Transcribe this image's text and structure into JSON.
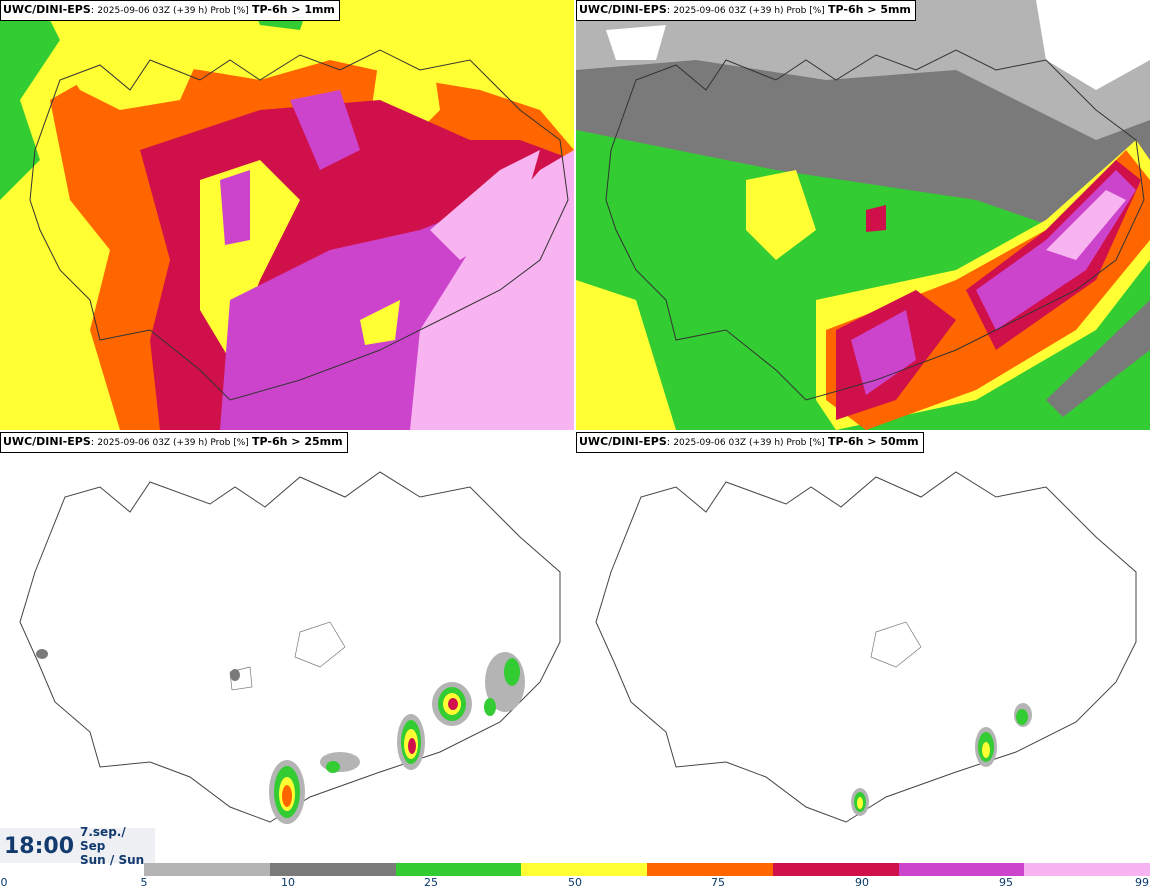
{
  "panels": [
    {
      "id": "p1",
      "source": "UWC/DINI-EPS",
      "run": "2025-09-06 03Z (+39 h) Prob [%]",
      "variable": "TP-6h > 1mm"
    },
    {
      "id": "p2",
      "source": "UWC/DINI-EPS",
      "run": "2025-09-06 03Z (+39 h) Prob [%]",
      "variable": "TP-6h > 5mm"
    },
    {
      "id": "p3",
      "source": "UWC/DINI-EPS",
      "run": "2025-09-06 03Z (+39 h) Prob [%]",
      "variable": "TP-6h > 25mm"
    },
    {
      "id": "p4",
      "source": "UWC/DINI-EPS",
      "run": "2025-09-06 03Z (+39 h) Prob [%]",
      "variable": "TP-6h > 50mm"
    }
  ],
  "time": "18:00",
  "date_line1": "7.sep./",
  "date_line2": "Sep",
  "date_line3": "Sun / Sun",
  "colorbar": {
    "thresholds": [
      "0",
      "5",
      "10",
      "25",
      "50",
      "75",
      "90",
      "95",
      "99"
    ],
    "colors": [
      "#b4b4b4",
      "#7a7a7a",
      "#33cc33",
      "#ffff33",
      "#ff6600",
      "#d0104a",
      "#cc44cc",
      "#f8b4f0"
    ]
  }
}
